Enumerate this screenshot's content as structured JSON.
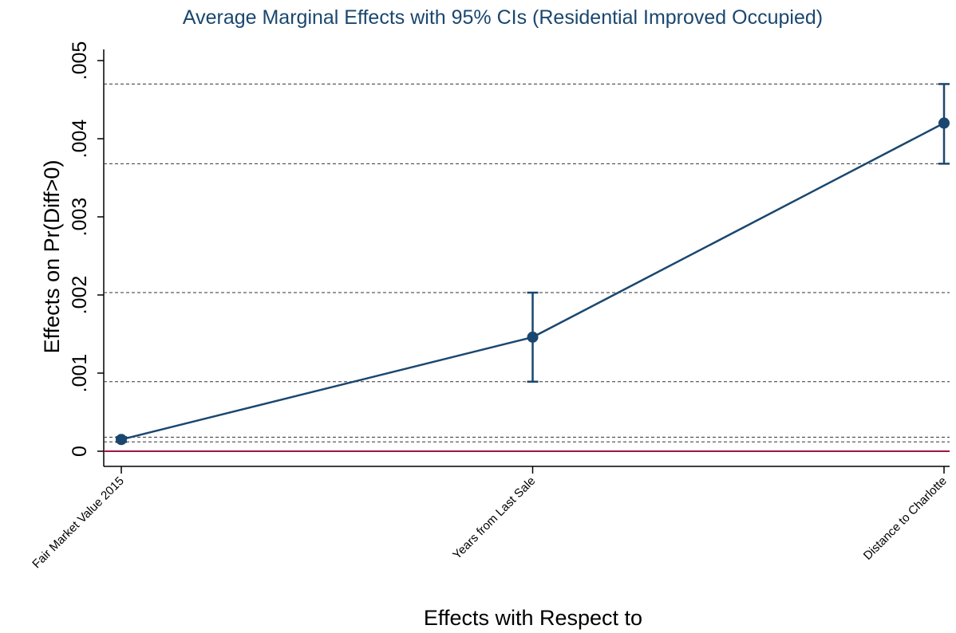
{
  "chart_data": {
    "type": "line",
    "title": "Average Marginal Effects with 95% CIs (Residential Improved Occupied)",
    "xlabel": "Effects with Respect to",
    "ylabel": "Effects on Pr(Diff>0)",
    "categories": [
      "Fair Market Value 2015",
      "Years from Last Sale",
      "Distance to Charlotte"
    ],
    "series": [
      {
        "name": "Effects on Pr(Diff>0)",
        "color": "#1a476f",
        "values": [
          0.00015,
          0.00146,
          0.0042
        ],
        "ci_lower": [
          0.00012,
          0.00089,
          0.00368
        ],
        "ci_upper": [
          0.00018,
          0.00203,
          0.0047
        ]
      }
    ],
    "ylim": [
      0,
      0.005
    ],
    "yticks": [
      0,
      {
        "value": 0.001,
        "label": ".001"
      },
      {
        "value": 0.002,
        "label": ".002"
      },
      {
        "value": 0.003,
        "label": ".003"
      },
      {
        "value": 0.004,
        "label": ".004"
      },
      {
        "value": 0.005,
        "label": ".005"
      }
    ],
    "reference_line": {
      "value": 0,
      "color": "#a0153e"
    },
    "ci_guides": true
  }
}
